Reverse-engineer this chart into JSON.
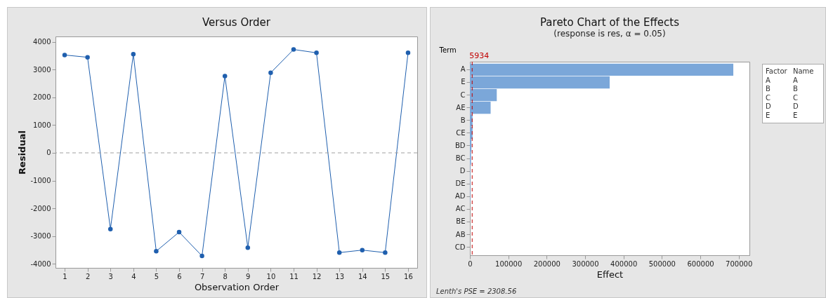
{
  "chart_data": [
    {
      "type": "line",
      "title": "Versus Order",
      "xlabel": "Observation Order",
      "ylabel": "Residual",
      "x": [
        1,
        2,
        3,
        4,
        5,
        6,
        7,
        8,
        9,
        10,
        11,
        12,
        13,
        14,
        15,
        16
      ],
      "values": [
        3530,
        3450,
        -2750,
        3560,
        -3550,
        -2860,
        -3720,
        2770,
        -3420,
        2890,
        3730,
        3610,
        -3600,
        -3510,
        -3600,
        3610
      ],
      "color": "#1f5fae",
      "marker": "circle",
      "line_style": "solid",
      "xlim": [
        0.6,
        16.4
      ],
      "xticks": [
        1,
        2,
        3,
        4,
        5,
        6,
        7,
        8,
        9,
        10,
        11,
        12,
        13,
        14,
        15,
        16
      ],
      "ylim": [
        -4150,
        4200
      ],
      "yticks": [
        -4000,
        -3000,
        -2000,
        -1000,
        0,
        1000,
        2000,
        3000,
        4000
      ],
      "ref_lines": [
        {
          "axis": "y",
          "value": 0,
          "color": "#a0a0a0",
          "line_style": "dashed"
        }
      ],
      "grid": false
    },
    {
      "type": "bar",
      "orientation": "horizontal",
      "title": "Pareto Chart of the Effects",
      "subtitle": "(response is res, α = 0.05)",
      "xlabel": "Effect",
      "ylabel": "Term",
      "categories": [
        "A",
        "E",
        "C",
        "AE",
        "B",
        "CE",
        "BD",
        "BC",
        "D",
        "DE",
        "AD",
        "AC",
        "BE",
        "AB",
        "CD"
      ],
      "values": [
        686000,
        364000,
        70000,
        54000,
        7000,
        7000,
        4000,
        3000,
        1000,
        1000,
        1000,
        0,
        0,
        0,
        0
      ],
      "color": "#7ba7d9",
      "xlim": [
        0,
        728000
      ],
      "xticks": [
        0,
        100000,
        200000,
        300000,
        400000,
        500000,
        600000,
        700000
      ],
      "ref_lines": [
        {
          "axis": "x",
          "value": 5934,
          "label": "5934",
          "color": "#c00000",
          "line_style": "dashed"
        }
      ],
      "annotations": [
        "Factor",
        "Name",
        "A",
        "A",
        "B",
        "B",
        "C",
        "C",
        "D",
        "D",
        "E",
        "E",
        "Lenth's PSE = 2308.56"
      ],
      "grid": false
    }
  ]
}
